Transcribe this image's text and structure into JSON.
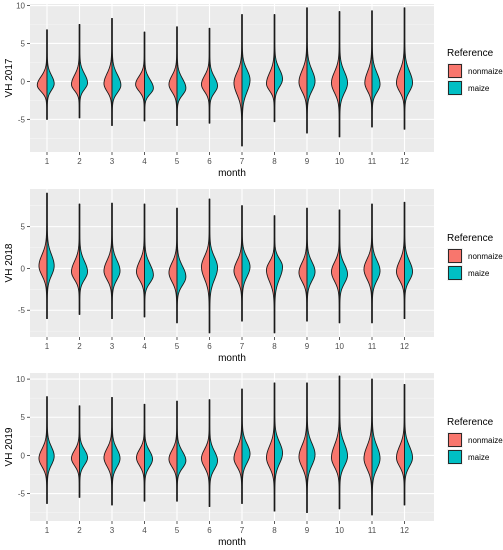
{
  "chart_data": [
    {
      "type": "violin",
      "ylabel": "VH 2017",
      "xlabel": "month",
      "categories": [
        "1",
        "2",
        "3",
        "4",
        "5",
        "6",
        "7",
        "8",
        "9",
        "10",
        "11",
        "12"
      ],
      "ylim": [
        -9.3,
        10.2
      ],
      "yticks": [
        -5,
        0,
        5,
        10
      ],
      "yticks_labels": [
        "-5",
        "0",
        "5",
        "10"
      ],
      "legend": {
        "title": "Reference",
        "position": "right"
      },
      "series": [
        {
          "name": "nonmaize",
          "color": "#F8766D",
          "ymin": [
            -5.0,
            -4.8,
            -5.8,
            -5.2,
            -5.8,
            -5.5,
            -8.5,
            -5.3,
            -6.8,
            -7.3,
            -6.0,
            -6.3
          ],
          "ymax": [
            6.8,
            7.5,
            8.3,
            6.5,
            7.2,
            7.0,
            8.8,
            8.8,
            9.7,
            9.2,
            9.3,
            9.7
          ],
          "center": [
            -0.5,
            -0.4,
            -0.3,
            -0.4,
            -0.4,
            -0.4,
            -0.2,
            -0.3,
            -0.1,
            -0.2,
            -0.2,
            -0.2
          ],
          "halfwidth": [
            0.55,
            0.45,
            0.45,
            0.5,
            0.45,
            0.45,
            0.45,
            0.45,
            0.45,
            0.45,
            0.4,
            0.45
          ]
        },
        {
          "name": "maize",
          "color": "#00BFC4",
          "ymin": [
            -5.0,
            -4.8,
            -5.8,
            -5.2,
            -5.8,
            -5.5,
            -8.5,
            -5.3,
            -6.8,
            -7.3,
            -6.0,
            -6.3
          ],
          "ymax": [
            6.8,
            7.5,
            8.3,
            6.5,
            7.2,
            7.0,
            8.8,
            8.8,
            9.7,
            9.2,
            9.3,
            9.7
          ],
          "center": [
            -0.3,
            -0.2,
            -0.5,
            -0.9,
            -0.9,
            -0.6,
            0.2,
            0.3,
            0.0,
            -0.2,
            -0.4,
            -0.2
          ],
          "halfwidth": [
            0.4,
            0.45,
            0.5,
            0.5,
            0.5,
            0.45,
            0.45,
            0.45,
            0.45,
            0.45,
            0.45,
            0.45
          ]
        }
      ]
    },
    {
      "type": "violin",
      "ylabel": "VH 2018",
      "xlabel": "month",
      "categories": [
        "1",
        "2",
        "3",
        "4",
        "5",
        "6",
        "7",
        "8",
        "9",
        "10",
        "11",
        "12"
      ],
      "ylim": [
        -8.2,
        9.5
      ],
      "yticks": [
        -5,
        0,
        5
      ],
      "yticks_labels": [
        "-5",
        "0",
        "5"
      ],
      "legend": {
        "title": "Reference",
        "position": "right"
      },
      "series": [
        {
          "name": "nonmaize",
          "color": "#F8766D",
          "ymin": [
            -6.0,
            -5.5,
            -6.0,
            -5.8,
            -6.5,
            -7.7,
            -6.3,
            -7.7,
            -6.3,
            -6.5,
            -6.5,
            -6.0
          ],
          "ymax": [
            9.0,
            7.7,
            7.8,
            7.7,
            7.2,
            8.3,
            7.5,
            6.3,
            7.2,
            7.0,
            7.7,
            7.9
          ],
          "center": [
            0.3,
            -0.4,
            -0.3,
            -0.4,
            -0.5,
            0.2,
            -0.3,
            -0.2,
            -0.5,
            -0.4,
            -0.1,
            -0.4
          ],
          "halfwidth": [
            0.45,
            0.45,
            0.45,
            0.45,
            0.45,
            0.45,
            0.45,
            0.45,
            0.45,
            0.45,
            0.45,
            0.45
          ]
        },
        {
          "name": "maize",
          "color": "#00BFC4",
          "ymin": [
            -6.0,
            -5.5,
            -6.0,
            -5.8,
            -6.5,
            -7.7,
            -6.3,
            -7.7,
            -6.3,
            -6.5,
            -6.5,
            -6.0
          ],
          "ymax": [
            9.0,
            7.7,
            7.8,
            7.7,
            7.2,
            8.3,
            7.5,
            6.3,
            7.2,
            7.0,
            7.7,
            7.9
          ],
          "center": [
            0.3,
            -0.4,
            -0.3,
            -0.8,
            -1.0,
            0.1,
            0.2,
            0.2,
            -0.4,
            -0.7,
            -0.3,
            -0.4
          ],
          "halfwidth": [
            0.4,
            0.45,
            0.45,
            0.5,
            0.5,
            0.45,
            0.45,
            0.45,
            0.45,
            0.45,
            0.45,
            0.45
          ]
        }
      ]
    },
    {
      "type": "violin",
      "ylabel": "VH 2019",
      "xlabel": "month",
      "categories": [
        "1",
        "2",
        "3",
        "4",
        "5",
        "6",
        "7",
        "8",
        "9",
        "10",
        "11",
        "12"
      ],
      "ylim": [
        -8.6,
        10.8
      ],
      "yticks": [
        -5,
        0,
        5,
        10
      ],
      "yticks_labels": [
        "-5",
        "0",
        "5",
        "10"
      ],
      "legend": {
        "title": "Reference",
        "position": "right"
      },
      "series": [
        {
          "name": "nonmaize",
          "color": "#F8766D",
          "ymin": [
            -6.3,
            -5.5,
            -6.5,
            -6.0,
            -6.0,
            -6.7,
            -6.3,
            -7.3,
            -7.5,
            -7.0,
            -7.8,
            -6.5
          ],
          "ymax": [
            7.7,
            6.5,
            7.6,
            6.7,
            7.1,
            7.3,
            8.7,
            9.5,
            9.5,
            10.4,
            10.0,
            9.3
          ],
          "center": [
            -0.4,
            -0.4,
            -0.3,
            -0.3,
            -0.5,
            -0.4,
            -0.4,
            -0.3,
            -0.2,
            -0.3,
            -0.4,
            -0.3
          ],
          "halfwidth": [
            0.45,
            0.45,
            0.45,
            0.45,
            0.45,
            0.45,
            0.45,
            0.45,
            0.45,
            0.45,
            0.45,
            0.45
          ]
        },
        {
          "name": "maize",
          "color": "#00BFC4",
          "ymin": [
            -6.3,
            -5.5,
            -6.5,
            -6.0,
            -6.0,
            -6.7,
            -6.3,
            -7.3,
            -7.5,
            -7.0,
            -7.8,
            -6.5
          ],
          "ymax": [
            7.7,
            6.5,
            7.6,
            6.7,
            7.1,
            7.3,
            8.7,
            9.5,
            9.5,
            10.4,
            10.0,
            9.3
          ],
          "center": [
            -0.1,
            -0.3,
            -0.4,
            -0.5,
            -0.7,
            -0.7,
            0.2,
            0.3,
            0.1,
            -0.1,
            -0.4,
            -0.3
          ],
          "halfwidth": [
            0.4,
            0.45,
            0.45,
            0.45,
            0.5,
            0.45,
            0.45,
            0.45,
            0.45,
            0.45,
            0.45,
            0.45
          ]
        }
      ]
    }
  ]
}
